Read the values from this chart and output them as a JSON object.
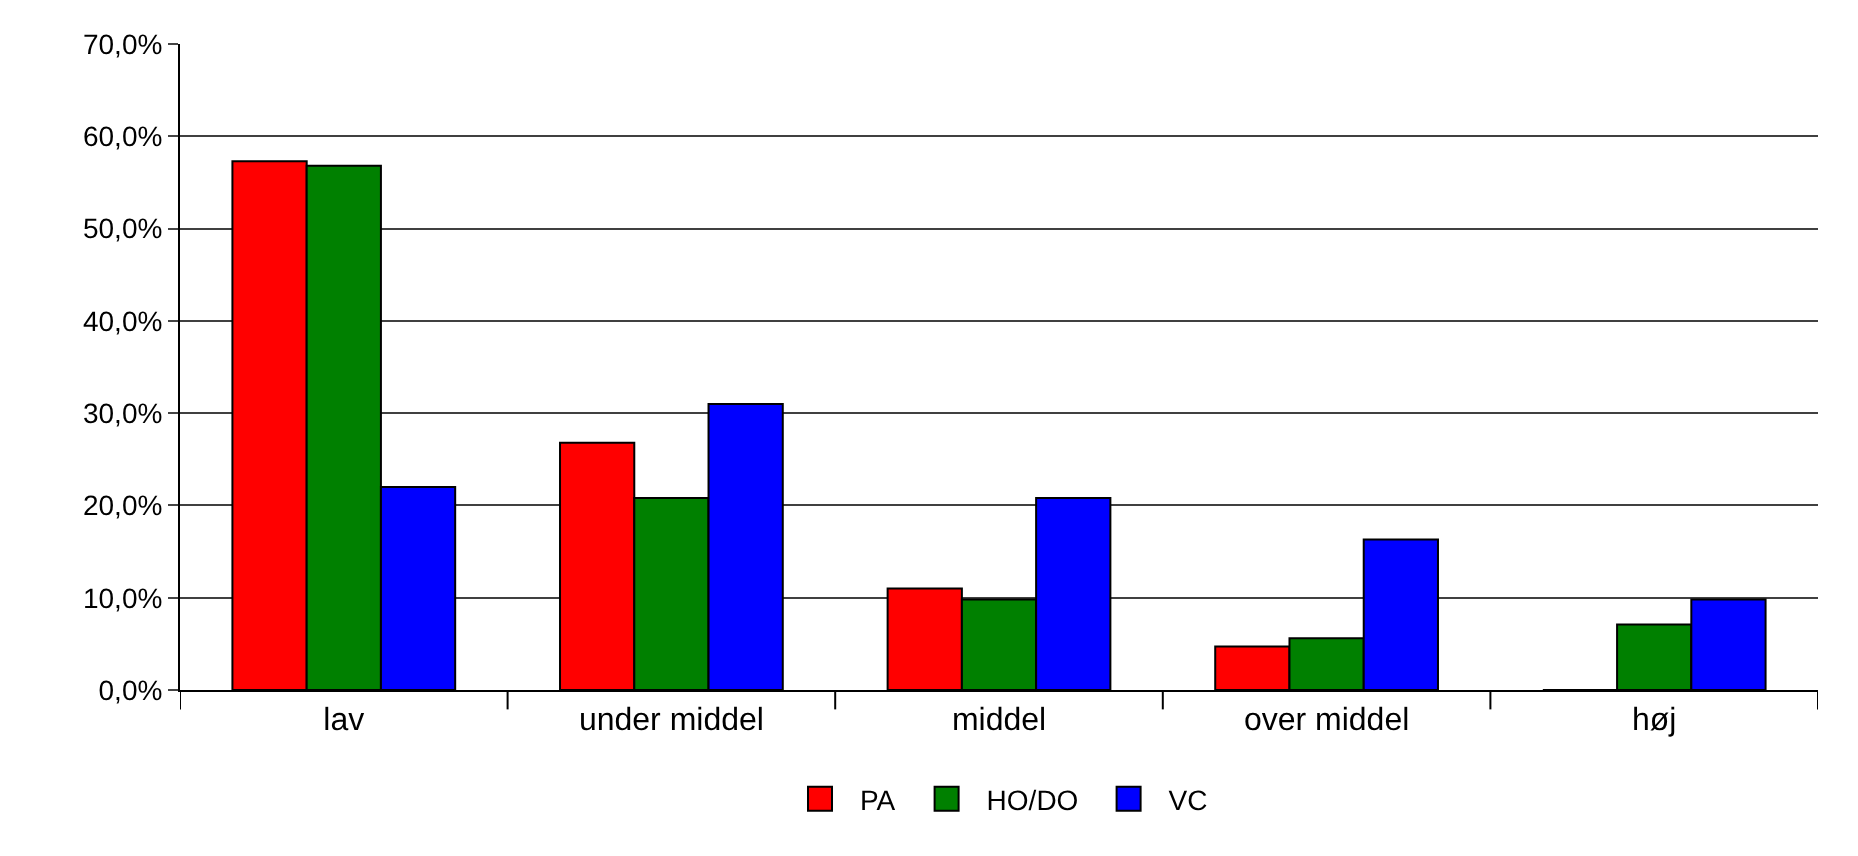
{
  "chart_data": {
    "type": "bar",
    "categories": [
      "lav",
      "under middel",
      "middel",
      "over middel",
      "høj"
    ],
    "series": [
      {
        "name": "PA",
        "color": "#ff0000",
        "values": [
          57.3,
          26.8,
          11.0,
          4.7,
          0
        ]
      },
      {
        "name": "HO/DO",
        "color": "#008000",
        "values": [
          56.8,
          20.8,
          9.8,
          5.6,
          7.1
        ]
      },
      {
        "name": "VC",
        "color": "#0000ff",
        "values": [
          22.0,
          31.0,
          20.8,
          16.3,
          9.8
        ]
      }
    ],
    "ylim": [
      0,
      70
    ],
    "yticks": [
      {
        "value": 0,
        "label": "0,0%"
      },
      {
        "value": 10,
        "label": "10,0%"
      },
      {
        "value": 20,
        "label": "20,0%"
      },
      {
        "value": 30,
        "label": "30,0%"
      },
      {
        "value": 40,
        "label": "40,0%"
      },
      {
        "value": 50,
        "label": "50,0%"
      },
      {
        "value": 60,
        "label": "60,0%"
      },
      {
        "value": 70,
        "label": "70,0%"
      }
    ],
    "grid": "y",
    "legend": "bottom"
  }
}
